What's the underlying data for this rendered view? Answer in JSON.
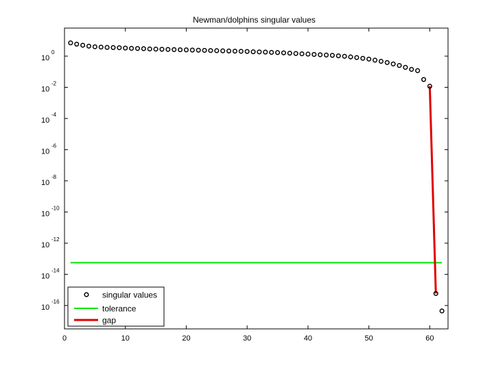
{
  "chart_data": {
    "type": "scatter",
    "title": "Newman/dolphins singular values",
    "xlabel": "",
    "ylabel": "",
    "xlim": [
      0,
      63
    ],
    "ylim_log10": [
      -17.5,
      1.8
    ],
    "yscale": "log",
    "grid": false,
    "legend_placement": "bottom-left",
    "x_ticks": [
      0,
      10,
      20,
      30,
      40,
      50,
      60
    ],
    "y_ticks": [
      {
        "base": "10",
        "exp": "0",
        "value_log10": 0
      },
      {
        "base": "10",
        "exp": "-2",
        "value_log10": -2
      },
      {
        "base": "10",
        "exp": "-4",
        "value_log10": -4
      },
      {
        "base": "10",
        "exp": "-6",
        "value_log10": -6
      },
      {
        "base": "10",
        "exp": "-8",
        "value_log10": -8
      },
      {
        "base": "10",
        "exp": "-10",
        "value_log10": -10
      },
      {
        "base": "10",
        "exp": "-12",
        "value_log10": -12
      },
      {
        "base": "10",
        "exp": "-14",
        "value_log10": -14
      },
      {
        "base": "10",
        "exp": "-16",
        "value_log10": -16
      }
    ],
    "series": [
      {
        "name": "singular values",
        "kind": "markers",
        "color": "#000000",
        "x": [
          1,
          2,
          3,
          4,
          5,
          6,
          7,
          8,
          9,
          10,
          11,
          12,
          13,
          14,
          15,
          16,
          17,
          18,
          19,
          20,
          21,
          22,
          23,
          24,
          25,
          26,
          27,
          28,
          29,
          30,
          31,
          32,
          33,
          34,
          35,
          36,
          37,
          38,
          39,
          40,
          41,
          42,
          43,
          44,
          45,
          46,
          47,
          48,
          49,
          50,
          51,
          52,
          53,
          54,
          55,
          56,
          57,
          58,
          59,
          60,
          61,
          62
        ],
        "y_log10": [
          0.85,
          0.77,
          0.7,
          0.64,
          0.6,
          0.58,
          0.56,
          0.55,
          0.54,
          0.52,
          0.5,
          0.49,
          0.48,
          0.46,
          0.45,
          0.44,
          0.43,
          0.42,
          0.41,
          0.4,
          0.39,
          0.38,
          0.37,
          0.36,
          0.35,
          0.34,
          0.33,
          0.32,
          0.31,
          0.3,
          0.28,
          0.27,
          0.26,
          0.24,
          0.23,
          0.21,
          0.19,
          0.17,
          0.15,
          0.13,
          0.11,
          0.09,
          0.07,
          0.05,
          0.02,
          -0.01,
          -0.05,
          -0.09,
          -0.14,
          -0.19,
          -0.26,
          -0.33,
          -0.41,
          -0.5,
          -0.6,
          -0.72,
          -0.85,
          -0.93,
          -1.5,
          -1.93,
          -15.23,
          -16.35
        ]
      },
      {
        "name": "tolerance",
        "kind": "line",
        "color": "#00e600",
        "x": [
          1,
          62
        ],
        "y_log10": [
          -13.25,
          -13.25
        ]
      },
      {
        "name": "gap",
        "kind": "line",
        "color": "#e00000",
        "x": [
          60,
          61
        ],
        "y_log10": [
          -1.93,
          -15.23
        ]
      }
    ]
  }
}
